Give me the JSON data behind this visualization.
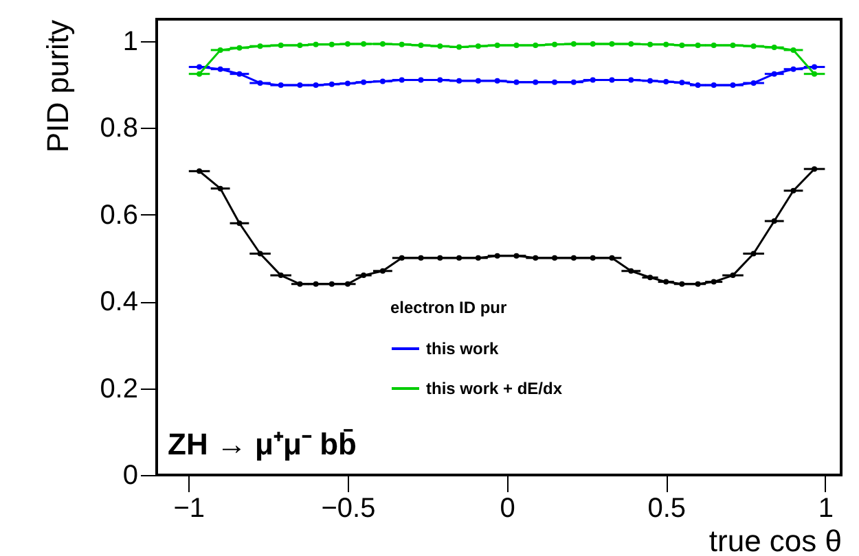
{
  "chart_data": {
    "type": "line",
    "xlabel": "true cos θ",
    "ylabel": "PID purity",
    "legend_title": "electron ID pur",
    "annotations": [
      "ZH → μ⁺μ⁻ bb̄"
    ],
    "x": [
      -0.966,
      -0.9,
      -0.84,
      -0.775,
      -0.71,
      -0.65,
      -0.6,
      -0.55,
      -0.5,
      -0.45,
      -0.39,
      -0.33,
      -0.27,
      -0.21,
      -0.15,
      -0.09,
      -0.03,
      0.03,
      0.09,
      0.15,
      0.21,
      0.27,
      0.33,
      0.39,
      0.45,
      0.5,
      0.55,
      0.6,
      0.65,
      0.71,
      0.775,
      0.84,
      0.9,
      0.966
    ],
    "series": [
      {
        "color": "#000000",
        "values": [
          0.7,
          0.66,
          0.58,
          0.51,
          0.46,
          0.44,
          0.44,
          0.44,
          0.44,
          0.46,
          0.47,
          0.5,
          0.5,
          0.5,
          0.5,
          0.5,
          0.505,
          0.505,
          0.5,
          0.5,
          0.5,
          0.5,
          0.5,
          0.47,
          0.455,
          0.445,
          0.44,
          0.44,
          0.445,
          0.46,
          0.51,
          0.585,
          0.655,
          0.705
        ],
        "xerrors": [
          0.033,
          0.03,
          0.03,
          0.033,
          0.033,
          0.027,
          0.025,
          0.025,
          0.025,
          0.025,
          0.03,
          0.03,
          0.03,
          0.03,
          0.03,
          0.03,
          0.03,
          0.03,
          0.03,
          0.03,
          0.03,
          0.03,
          0.03,
          0.03,
          0.025,
          0.025,
          0.025,
          0.025,
          0.027,
          0.033,
          0.033,
          0.03,
          0.03,
          0.033
        ]
      },
      {
        "name": "this work",
        "color": "#0000ff",
        "values": [
          0.94,
          0.935,
          0.924,
          0.903,
          0.898,
          0.898,
          0.898,
          0.9,
          0.902,
          0.905,
          0.907,
          0.91,
          0.91,
          0.91,
          0.908,
          0.908,
          0.908,
          0.905,
          0.905,
          0.905,
          0.905,
          0.91,
          0.91,
          0.91,
          0.908,
          0.906,
          0.904,
          0.898,
          0.898,
          0.898,
          0.903,
          0.924,
          0.935,
          0.94
        ],
        "xerrors": [
          0.033,
          0.03,
          0.03,
          0.033,
          0.033,
          0.027,
          0.025,
          0.025,
          0.025,
          0.025,
          0.03,
          0.03,
          0.03,
          0.03,
          0.03,
          0.03,
          0.03,
          0.03,
          0.03,
          0.03,
          0.03,
          0.03,
          0.03,
          0.03,
          0.025,
          0.025,
          0.025,
          0.025,
          0.027,
          0.033,
          0.033,
          0.03,
          0.03,
          0.033
        ]
      },
      {
        "name": "this work + dE/dx",
        "color": "#00cc00",
        "values": [
          0.924,
          0.979,
          0.984,
          0.988,
          0.99,
          0.99,
          0.992,
          0.992,
          0.993,
          0.993,
          0.993,
          0.992,
          0.99,
          0.988,
          0.986,
          0.988,
          0.99,
          0.99,
          0.99,
          0.992,
          0.993,
          0.993,
          0.993,
          0.993,
          0.992,
          0.992,
          0.99,
          0.99,
          0.99,
          0.99,
          0.988,
          0.985,
          0.979,
          0.924
        ],
        "xerrors": [
          0.033,
          0.03,
          0.03,
          0.033,
          0.033,
          0.027,
          0.025,
          0.025,
          0.025,
          0.025,
          0.03,
          0.03,
          0.03,
          0.03,
          0.03,
          0.03,
          0.03,
          0.03,
          0.03,
          0.03,
          0.03,
          0.03,
          0.03,
          0.03,
          0.025,
          0.025,
          0.025,
          0.025,
          0.027,
          0.033,
          0.033,
          0.03,
          0.03,
          0.033
        ]
      }
    ],
    "xlim": [
      -1.1,
      1.05
    ],
    "ylim": [
      0,
      1.05
    ],
    "xticks": [
      -1,
      -0.5,
      0,
      0.5,
      1
    ],
    "yticks": [
      0,
      0.2,
      0.4,
      0.6,
      0.8,
      1
    ],
    "legend": "bottom",
    "marker": "circle",
    "line_style": "solid"
  }
}
